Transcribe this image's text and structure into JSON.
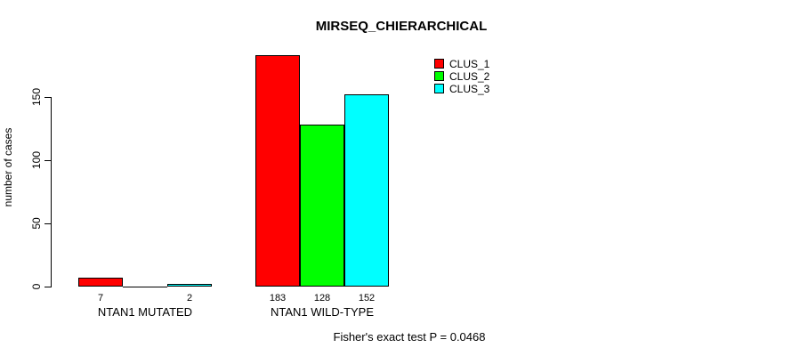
{
  "chart_data": {
    "type": "bar",
    "title": "MIRSEQ_CHIERARCHICAL",
    "xlabel": "",
    "ylabel": "number of cases",
    "ylim": [
      0,
      190
    ],
    "yticks": [
      0,
      50,
      100,
      150
    ],
    "ytick_labels": [
      "0",
      "50",
      "100",
      "150"
    ],
    "grid": false,
    "categories": [
      "NTAN1 MUTATED",
      "NTAN1 WILD-TYPE"
    ],
    "series": [
      {
        "name": "CLUS_1",
        "color": "#ff0000",
        "values": [
          7,
          183
        ]
      },
      {
        "name": "CLUS_2",
        "color": "#00ff00",
        "values": [
          0,
          128
        ]
      },
      {
        "name": "CLUS_3",
        "color": "#00ffff",
        "values": [
          2,
          152
        ]
      }
    ],
    "bar_value_labels": [
      [
        "7",
        "",
        "2"
      ],
      [
        "183",
        "128",
        "152"
      ]
    ],
    "legend": {
      "position": "top-right",
      "entries": [
        "CLUS_1",
        "CLUS_2",
        "CLUS_3"
      ],
      "colors": [
        "#ff0000",
        "#00ff00",
        "#00ffff"
      ]
    },
    "annotation": "Fisher's exact test P = 0.0468",
    "bar_border_color": "#000000",
    "axis_color": "#000000"
  }
}
